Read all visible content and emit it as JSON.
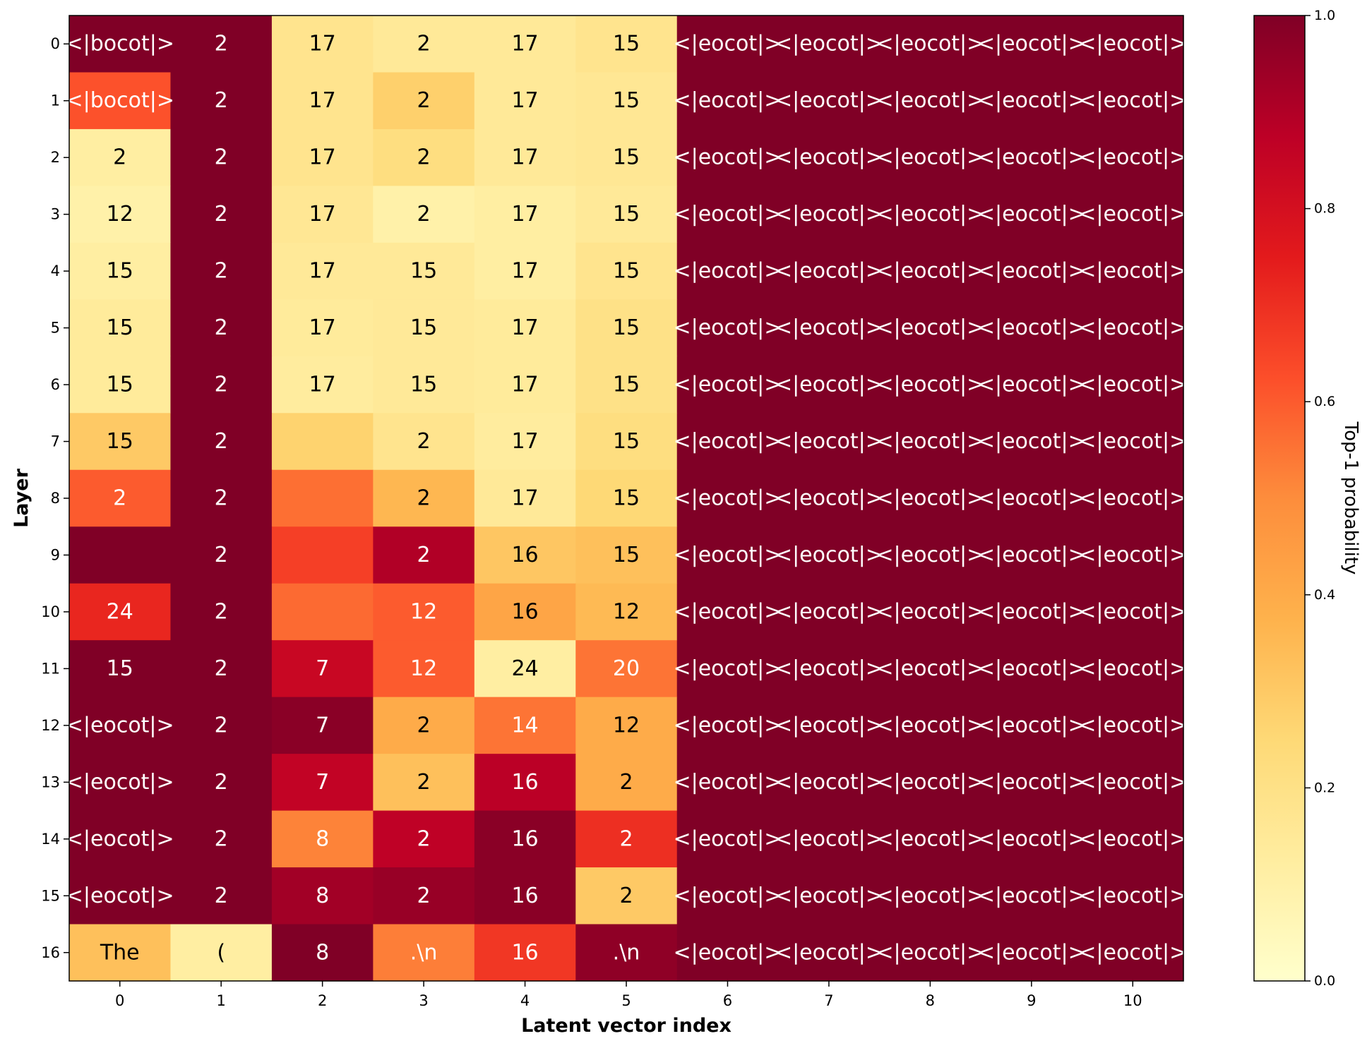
{
  "chart_data": {
    "type": "heatmap",
    "xlabel": "Latent vector index",
    "ylabel": "Layer",
    "x_categories": [
      "0",
      "1",
      "2",
      "3",
      "4",
      "5",
      "6",
      "7",
      "8",
      "9",
      "10"
    ],
    "y_categories": [
      "0",
      "1",
      "2",
      "3",
      "4",
      "5",
      "6",
      "7",
      "8",
      "9",
      "10",
      "11",
      "12",
      "13",
      "14",
      "15",
      "16"
    ],
    "colormap": "YlOrRd",
    "colorbar": {
      "label": "Top-1 probability",
      "range": [
        0,
        1
      ],
      "ticks": [
        "0.0",
        "0.2",
        "0.4",
        "0.6",
        "0.8",
        "1.0"
      ],
      "tick_values": [
        0,
        0.2,
        0.4,
        0.6,
        0.8,
        1.0
      ]
    },
    "cell_labels": [
      [
        "<|bocot|>",
        "2",
        "17",
        "2",
        "17",
        "15",
        "<|eocot|>",
        "<|eocot|>",
        "<|eocot|>",
        "<|eocot|>",
        "<|eocot|>"
      ],
      [
        "<|bocot|>",
        "2",
        "17",
        "2",
        "17",
        "15",
        "<|eocot|>",
        "<|eocot|>",
        "<|eocot|>",
        "<|eocot|>",
        "<|eocot|>"
      ],
      [
        "2",
        "2",
        "17",
        "2",
        "17",
        "15",
        "<|eocot|>",
        "<|eocot|>",
        "<|eocot|>",
        "<|eocot|>",
        "<|eocot|>"
      ],
      [
        "12",
        "2",
        "17",
        "2",
        "17",
        "15",
        "<|eocot|>",
        "<|eocot|>",
        "<|eocot|>",
        "<|eocot|>",
        "<|eocot|>"
      ],
      [
        "15",
        "2",
        "17",
        "15",
        "17",
        "15",
        "<|eocot|>",
        "<|eocot|>",
        "<|eocot|>",
        "<|eocot|>",
        "<|eocot|>"
      ],
      [
        "15",
        "2",
        "17",
        "15",
        "17",
        "15",
        "<|eocot|>",
        "<|eocot|>",
        "<|eocot|>",
        "<|eocot|>",
        "<|eocot|>"
      ],
      [
        "15",
        "2",
        "17",
        "15",
        "17",
        "15",
        "<|eocot|>",
        "<|eocot|>",
        "<|eocot|>",
        "<|eocot|>",
        "<|eocot|>"
      ],
      [
        "15",
        "2",
        "",
        "2",
        "17",
        "15",
        "<|eocot|>",
        "<|eocot|>",
        "<|eocot|>",
        "<|eocot|>",
        "<|eocot|>"
      ],
      [
        "2",
        "2",
        "",
        "2",
        "17",
        "15",
        "<|eocot|>",
        "<|eocot|>",
        "<|eocot|>",
        "<|eocot|>",
        "<|eocot|>"
      ],
      [
        "",
        "2",
        "",
        "2",
        "16",
        "15",
        "<|eocot|>",
        "<|eocot|>",
        "<|eocot|>",
        "<|eocot|>",
        "<|eocot|>"
      ],
      [
        "24",
        "2",
        "",
        "12",
        "16",
        "12",
        "<|eocot|>",
        "<|eocot|>",
        "<|eocot|>",
        "<|eocot|>",
        "<|eocot|>"
      ],
      [
        "15",
        "2",
        "7",
        "12",
        "24",
        "20",
        "<|eocot|>",
        "<|eocot|>",
        "<|eocot|>",
        "<|eocot|>",
        "<|eocot|>"
      ],
      [
        "<|eocot|>",
        "2",
        "7",
        "2",
        "14",
        "12",
        "<|eocot|>",
        "<|eocot|>",
        "<|eocot|>",
        "<|eocot|>",
        "<|eocot|>"
      ],
      [
        "<|eocot|>",
        "2",
        "7",
        "2",
        "16",
        "2",
        "<|eocot|>",
        "<|eocot|>",
        "<|eocot|>",
        "<|eocot|>",
        "<|eocot|>"
      ],
      [
        "<|eocot|>",
        "2",
        "8",
        "2",
        "16",
        "2",
        "<|eocot|>",
        "<|eocot|>",
        "<|eocot|>",
        "<|eocot|>",
        "<|eocot|>"
      ],
      [
        "<|eocot|>",
        "2",
        "8",
        "2",
        "16",
        "2",
        "<|eocot|>",
        "<|eocot|>",
        "<|eocot|>",
        "<|eocot|>",
        "<|eocot|>"
      ],
      [
        "The",
        "(",
        "8",
        ".\\n",
        "16",
        ".\\n",
        "<|eocot|>",
        "<|eocot|>",
        "<|eocot|>",
        "<|eocot|>",
        "<|eocot|>"
      ]
    ],
    "values": [
      [
        1.0,
        1.0,
        0.18,
        0.15,
        0.15,
        0.18,
        1,
        1,
        1,
        1,
        1
      ],
      [
        0.62,
        1.0,
        0.18,
        0.28,
        0.15,
        0.16,
        1,
        1,
        1,
        1,
        1
      ],
      [
        0.12,
        1.0,
        0.18,
        0.22,
        0.15,
        0.16,
        1,
        1,
        1,
        1,
        1
      ],
      [
        0.1,
        1.0,
        0.16,
        0.1,
        0.12,
        0.15,
        1,
        1,
        1,
        1,
        1
      ],
      [
        0.12,
        1.0,
        0.15,
        0.15,
        0.12,
        0.18,
        1,
        1,
        1,
        1,
        1
      ],
      [
        0.14,
        1.0,
        0.14,
        0.15,
        0.14,
        0.2,
        1,
        1,
        1,
        1,
        1
      ],
      [
        0.14,
        1.0,
        0.13,
        0.15,
        0.14,
        0.2,
        1,
        1,
        1,
        1,
        1
      ],
      [
        0.3,
        1.0,
        0.27,
        0.18,
        0.13,
        0.22,
        1,
        1,
        1,
        1,
        1
      ],
      [
        0.6,
        1.0,
        0.56,
        0.36,
        0.15,
        0.25,
        1,
        1,
        1,
        1,
        1
      ],
      [
        1.0,
        1.0,
        0.66,
        0.9,
        0.31,
        0.33,
        1,
        1,
        1,
        1,
        1
      ],
      [
        0.72,
        1.0,
        0.57,
        0.6,
        0.42,
        0.35,
        1,
        1,
        1,
        1,
        1
      ],
      [
        1.0,
        1.0,
        0.84,
        0.6,
        0.12,
        0.55,
        1,
        1,
        1,
        1,
        1
      ],
      [
        1.0,
        1.0,
        0.98,
        0.4,
        0.55,
        0.4,
        1,
        1,
        1,
        1,
        1
      ],
      [
        1.0,
        1.0,
        0.86,
        0.33,
        0.88,
        0.4,
        1,
        1,
        1,
        1,
        1
      ],
      [
        1.0,
        1.0,
        0.52,
        0.87,
        0.98,
        0.7,
        1,
        1,
        1,
        1,
        1
      ],
      [
        1.0,
        1.0,
        0.93,
        0.95,
        0.98,
        0.3,
        1,
        1,
        1,
        1,
        1
      ],
      [
        0.33,
        0.12,
        1.0,
        0.53,
        0.68,
        0.97,
        1,
        1,
        1,
        1,
        1
      ]
    ]
  }
}
